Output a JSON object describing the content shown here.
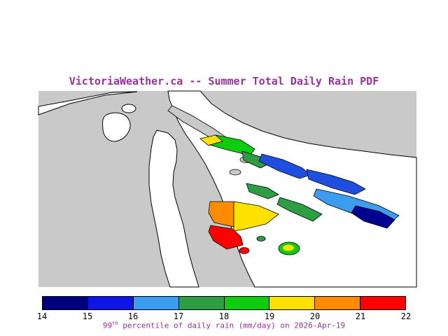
{
  "title": "VictoriaWeather.ca -- Summer Total Daily Rain PDF",
  "accent_color": "#993399",
  "map": {
    "land_color": "#c9c9c9",
    "water_color": "#ffffff",
    "coastline_color": "#000000"
  },
  "colorbar": {
    "tick_labels": [
      "14",
      "15",
      "16",
      "17",
      "18",
      "19",
      "20",
      "21",
      "22"
    ],
    "segment_colors": [
      "#00007f",
      "#0f14e8",
      "#3c9cf0",
      "#2e9e44",
      "#0ecc0e",
      "#ffe100",
      "#ff8c00",
      "#ff0000"
    ]
  },
  "caption": {
    "value": "99",
    "ordinal": "th",
    "text": " percentile of daily rain (mm/day) on 2026-Apr-19"
  },
  "chart_data": {
    "type": "heatmap",
    "title": "VictoriaWeather.ca -- Summer Total Daily Rain PDF",
    "variable": "99th percentile of daily rain",
    "units": "mm/day",
    "date": "2026-Apr-19",
    "scale_min": 14,
    "scale_max": 22,
    "scale_ticks": [
      14,
      15,
      16,
      17,
      18,
      19,
      20,
      21,
      22
    ],
    "scale_colors": [
      "#00007f",
      "#0f14e8",
      "#3c9cf0",
      "#2e9e44",
      "#0ecc0e",
      "#ffe100",
      "#ff8c00",
      "#ff0000"
    ],
    "legend_position": "bottom",
    "region_values": [
      {
        "area": "northwest-islands",
        "value_range": [
          18,
          19
        ]
      },
      {
        "area": "north-central-islands",
        "value_range": [
          15,
          17
        ]
      },
      {
        "area": "east-islands",
        "value_range": [
          14,
          16
        ]
      },
      {
        "area": "central-islands",
        "value_range": [
          17,
          18
        ]
      },
      {
        "area": "peninsula-core",
        "value_range": [
          19,
          22
        ]
      },
      {
        "area": "south-patch",
        "value_range": [
          21,
          22
        ]
      },
      {
        "area": "southeast-islet",
        "value_range": [
          18,
          20
        ]
      }
    ]
  }
}
